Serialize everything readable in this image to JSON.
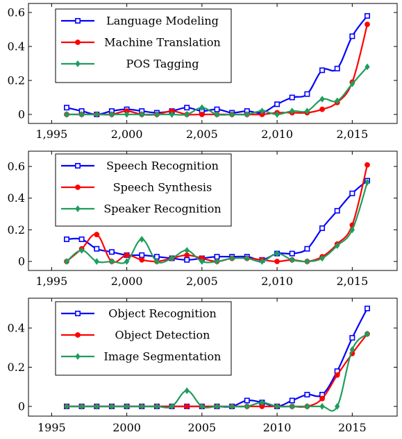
{
  "chart_data": [
    {
      "type": "line",
      "x_tick_labels": [
        "1,995",
        "2,000",
        "2,005",
        "2,010",
        "2,015"
      ],
      "x_ticks": [
        1995,
        2000,
        2005,
        2010,
        2015
      ],
      "y_ticks": [
        0,
        0.2,
        0.4,
        0.6
      ],
      "y_tick_labels": [
        "0",
        "0.2",
        "0.4",
        "0.6"
      ],
      "xlim": [
        1993,
        2018
      ],
      "ylim": [
        -0.05,
        0.6
      ],
      "legend_position": "top-left",
      "x": [
        1996,
        1997,
        1998,
        1999,
        2000,
        2001,
        2002,
        2003,
        2004,
        2005,
        2006,
        2007,
        2008,
        2009,
        2010,
        2011,
        2012,
        2013,
        2014,
        2015,
        2016
      ],
      "series": [
        {
          "name": "Language Modeling",
          "color": "#0000ff",
          "marker": "square",
          "values": [
            0.04,
            0.02,
            0.0,
            0.02,
            0.03,
            0.02,
            0.01,
            0.02,
            0.04,
            0.02,
            0.03,
            0.01,
            0.02,
            0.01,
            0.06,
            0.1,
            0.12,
            0.26,
            0.27,
            0.46,
            0.58
          ]
        },
        {
          "name": "Machine Translation",
          "color": "#ff0000",
          "marker": "circle",
          "values": [
            0.0,
            0.0,
            0.0,
            0.0,
            0.02,
            0.0,
            0.0,
            0.02,
            0.0,
            0.0,
            0.0,
            0.0,
            0.0,
            0.0,
            0.01,
            0.01,
            0.01,
            0.03,
            0.07,
            0.19,
            0.53
          ]
        },
        {
          "name": "POS Tagging",
          "color": "#1f9d5c",
          "marker": "diamond",
          "values": [
            0.0,
            0.0,
            0.0,
            0.0,
            0.0,
            0.0,
            0.0,
            0.0,
            0.0,
            0.04,
            0.0,
            0.0,
            0.0,
            0.02,
            0.0,
            0.02,
            0.02,
            0.09,
            0.08,
            0.18,
            0.28
          ]
        }
      ]
    },
    {
      "type": "line",
      "x_tick_labels": [
        "1,995",
        "2,000",
        "2,005",
        "2,010",
        "2,015"
      ],
      "x_ticks": [
        1995,
        2000,
        2005,
        2010,
        2015
      ],
      "y_ticks": [
        0,
        0.2,
        0.4,
        0.6
      ],
      "y_tick_labels": [
        "0",
        "0.2",
        "0.4",
        "0.6"
      ],
      "xlim": [
        1993,
        2018
      ],
      "ylim": [
        -0.05,
        0.65
      ],
      "legend_position": "top-left",
      "x": [
        1996,
        1997,
        1998,
        1999,
        2000,
        2001,
        2002,
        2003,
        2004,
        2005,
        2006,
        2007,
        2008,
        2009,
        2010,
        2011,
        2012,
        2013,
        2014,
        2015,
        2016
      ],
      "series": [
        {
          "name": "Speech Recognition",
          "color": "#0000ff",
          "marker": "square",
          "values": [
            0.14,
            0.14,
            0.08,
            0.06,
            0.04,
            0.04,
            0.03,
            0.02,
            0.01,
            0.02,
            0.03,
            0.03,
            0.03,
            0.01,
            0.05,
            0.05,
            0.08,
            0.21,
            0.32,
            0.43,
            0.51
          ]
        },
        {
          "name": "Speech Synthesis",
          "color": "#ff0000",
          "marker": "circle",
          "values": [
            0.0,
            0.08,
            0.17,
            0.0,
            0.04,
            0.01,
            0.0,
            0.02,
            0.04,
            0.02,
            0.0,
            0.02,
            0.02,
            0.01,
            0.0,
            0.01,
            0.0,
            0.03,
            0.11,
            0.23,
            0.61
          ]
        },
        {
          "name": "Speaker Recognition",
          "color": "#1f9d5c",
          "marker": "diamond",
          "values": [
            0.0,
            0.07,
            0.0,
            0.0,
            0.0,
            0.14,
            0.0,
            0.02,
            0.07,
            0.0,
            0.0,
            0.02,
            0.02,
            0.0,
            0.05,
            0.01,
            0.0,
            0.02,
            0.1,
            0.2,
            0.5
          ]
        }
      ]
    },
    {
      "type": "line",
      "x_tick_labels": [
        "1995",
        "2000",
        "2005",
        "2010",
        "2015"
      ],
      "x_ticks": [
        1995,
        2000,
        2005,
        2010,
        2015
      ],
      "y_ticks": [
        0,
        0.2,
        0.4
      ],
      "y_tick_labels": [
        "0",
        "0.2",
        "0.4"
      ],
      "xlim": [
        1993,
        2018
      ],
      "ylim": [
        -0.04,
        0.54
      ],
      "legend_position": "top-left",
      "x": [
        1996,
        1997,
        1998,
        1999,
        2000,
        2001,
        2002,
        2003,
        2004,
        2005,
        2006,
        2007,
        2008,
        2009,
        2010,
        2011,
        2012,
        2013,
        2014,
        2015,
        2016
      ],
      "series": [
        {
          "name": "Object Recognition",
          "color": "#0000ff",
          "marker": "square",
          "values": [
            0.0,
            0.0,
            0.0,
            0.0,
            0.0,
            0.0,
            0.0,
            0.0,
            0.0,
            0.0,
            0.0,
            0.0,
            0.03,
            0.02,
            0.0,
            0.03,
            0.06,
            0.06,
            0.18,
            0.35,
            0.5
          ]
        },
        {
          "name": "Object Detection",
          "color": "#ff0000",
          "marker": "circle",
          "values": [
            0.0,
            0.0,
            0.0,
            0.0,
            0.0,
            0.0,
            0.0,
            0.0,
            0.0,
            0.0,
            0.0,
            0.0,
            0.0,
            0.0,
            0.0,
            0.0,
            0.0,
            0.04,
            0.16,
            0.27,
            0.37
          ]
        },
        {
          "name": "Image Segmentation",
          "color": "#1f9d5c",
          "marker": "diamond",
          "values": [
            0.0,
            0.0,
            0.0,
            0.0,
            0.0,
            0.0,
            0.0,
            0.0,
            0.08,
            0.0,
            0.0,
            0.0,
            0.0,
            0.02,
            0.0,
            0.0,
            0.0,
            0.0,
            0.0,
            0.29,
            0.37
          ]
        }
      ]
    }
  ]
}
